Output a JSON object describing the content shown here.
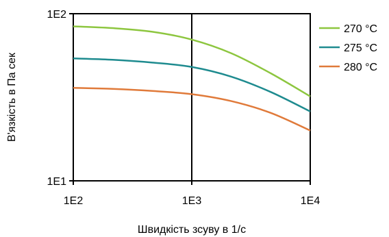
{
  "chart_data": {
    "type": "line",
    "xlabel": "Швидкість зсуву в 1/с",
    "ylabel": "В'язкість в Па сек",
    "x_scale": "log",
    "y_scale": "log",
    "xlim": [
      100,
      10000
    ],
    "ylim": [
      10,
      100
    ],
    "x_ticks": [
      {
        "value": 100,
        "label": "1E2"
      },
      {
        "value": 1000,
        "label": "1E3"
      },
      {
        "value": 10000,
        "label": "1E4"
      }
    ],
    "y_ticks": [
      {
        "value": 10,
        "label": "1E1"
      },
      {
        "value": 100,
        "label": "1E2"
      }
    ],
    "grid": "major x gridline at 1E3",
    "legend_position": "right",
    "series": [
      {
        "name": "270 °C",
        "color": "#8DC63F",
        "points": [
          [
            100,
            84
          ],
          [
            215,
            82
          ],
          [
            464,
            78
          ],
          [
            1000,
            70
          ],
          [
            2154,
            58
          ],
          [
            4642,
            44
          ],
          [
            10000,
            32
          ]
        ]
      },
      {
        "name": "275 °C",
        "color": "#1E8B8F",
        "points": [
          [
            100,
            54
          ],
          [
            215,
            53
          ],
          [
            464,
            51
          ],
          [
            1000,
            48
          ],
          [
            2154,
            42
          ],
          [
            4642,
            34
          ],
          [
            10000,
            26
          ]
        ]
      },
      {
        "name": "280 °C",
        "color": "#E07A3A",
        "points": [
          [
            100,
            36
          ],
          [
            215,
            35.5
          ],
          [
            464,
            34.5
          ],
          [
            1000,
            33
          ],
          [
            2154,
            30
          ],
          [
            4642,
            25.5
          ],
          [
            10000,
            20
          ]
        ]
      }
    ]
  }
}
